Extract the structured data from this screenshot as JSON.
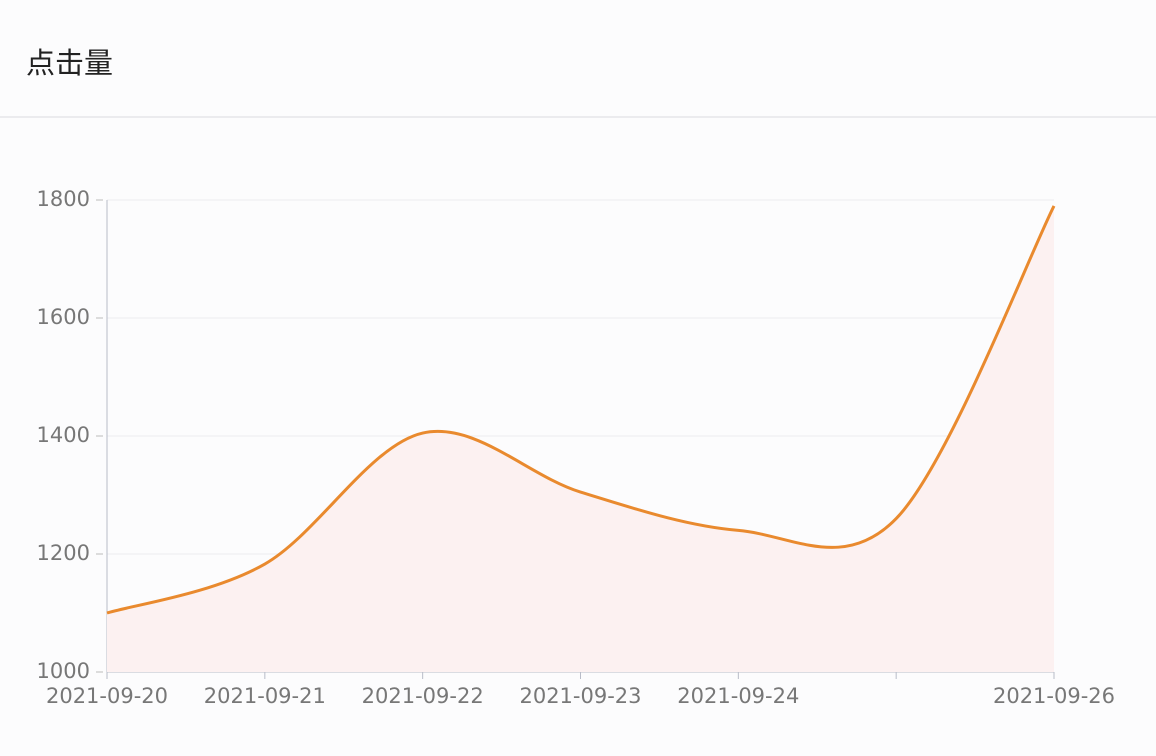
{
  "header": {
    "title": "点击量"
  },
  "chart_data": {
    "type": "line",
    "categories": [
      "2021-09-20",
      "2021-09-21",
      "2021-09-22",
      "2021-09-23",
      "2021-09-24",
      null,
      "2021-09-26"
    ],
    "series": [
      {
        "color": "#e98a2e",
        "fill": "#fcf1f1",
        "values": [
          1100,
          1183,
          1405,
          1305,
          1240,
          1260,
          1790
        ]
      }
    ],
    "ylim": [
      1000,
      1800
    ],
    "yticks": [
      1000,
      1200,
      1400,
      1600,
      1800
    ],
    "grid": true,
    "smooth": true
  }
}
